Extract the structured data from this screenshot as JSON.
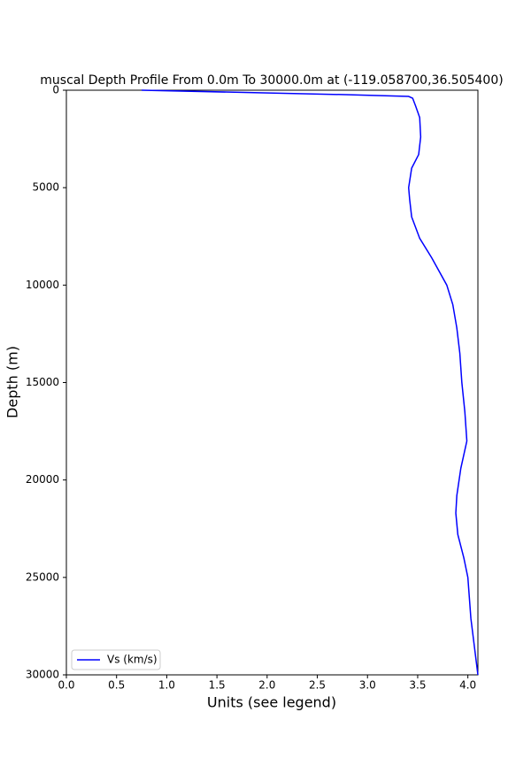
{
  "chart_data": {
    "type": "line",
    "title": "muscal Depth Profile From 0.0m To 30000.0m at (-119.058700,36.505400)",
    "xlabel": "Units (see legend)",
    "ylabel": "Depth (m)",
    "y": [
      0,
      227,
      318,
      409,
      817,
      1400,
      2400,
      3300,
      4000,
      5000,
      5600,
      6500,
      7600,
      8600,
      10000,
      11000,
      12200,
      13500,
      15000,
      16500,
      18000,
      19400,
      20800,
      21700,
      22800,
      24000,
      25000,
      27100,
      30000
    ],
    "series": [
      {
        "name": "Vs (km/s)",
        "color": "#0000ff",
        "values": [
          0.75,
          2.78,
          3.41,
          3.45,
          3.48,
          3.52,
          3.53,
          3.51,
          3.44,
          3.41,
          3.42,
          3.44,
          3.52,
          3.64,
          3.79,
          3.85,
          3.89,
          3.92,
          3.94,
          3.97,
          3.99,
          3.93,
          3.89,
          3.88,
          3.9,
          3.96,
          4.0,
          4.03,
          4.1
        ]
      }
    ],
    "xlim": [
      0,
      4.1
    ],
    "xticks": [
      {
        "value": 0,
        "label": "0.0"
      },
      {
        "value": 0.5,
        "label": "0.5"
      },
      {
        "value": 1,
        "label": "1.0"
      },
      {
        "value": 1.5,
        "label": "1.5"
      },
      {
        "value": 2,
        "label": "2.0"
      },
      {
        "value": 2.5,
        "label": "2.5"
      },
      {
        "value": 3,
        "label": "3.0"
      },
      {
        "value": 3.5,
        "label": "3.5"
      },
      {
        "value": 4,
        "label": "4.0"
      }
    ],
    "ylim": [
      0,
      30000
    ],
    "yticks": [
      0,
      5000,
      10000,
      15000,
      20000,
      25000,
      30000
    ],
    "y_inverted": true,
    "grid": false,
    "legend": "lower-left"
  }
}
